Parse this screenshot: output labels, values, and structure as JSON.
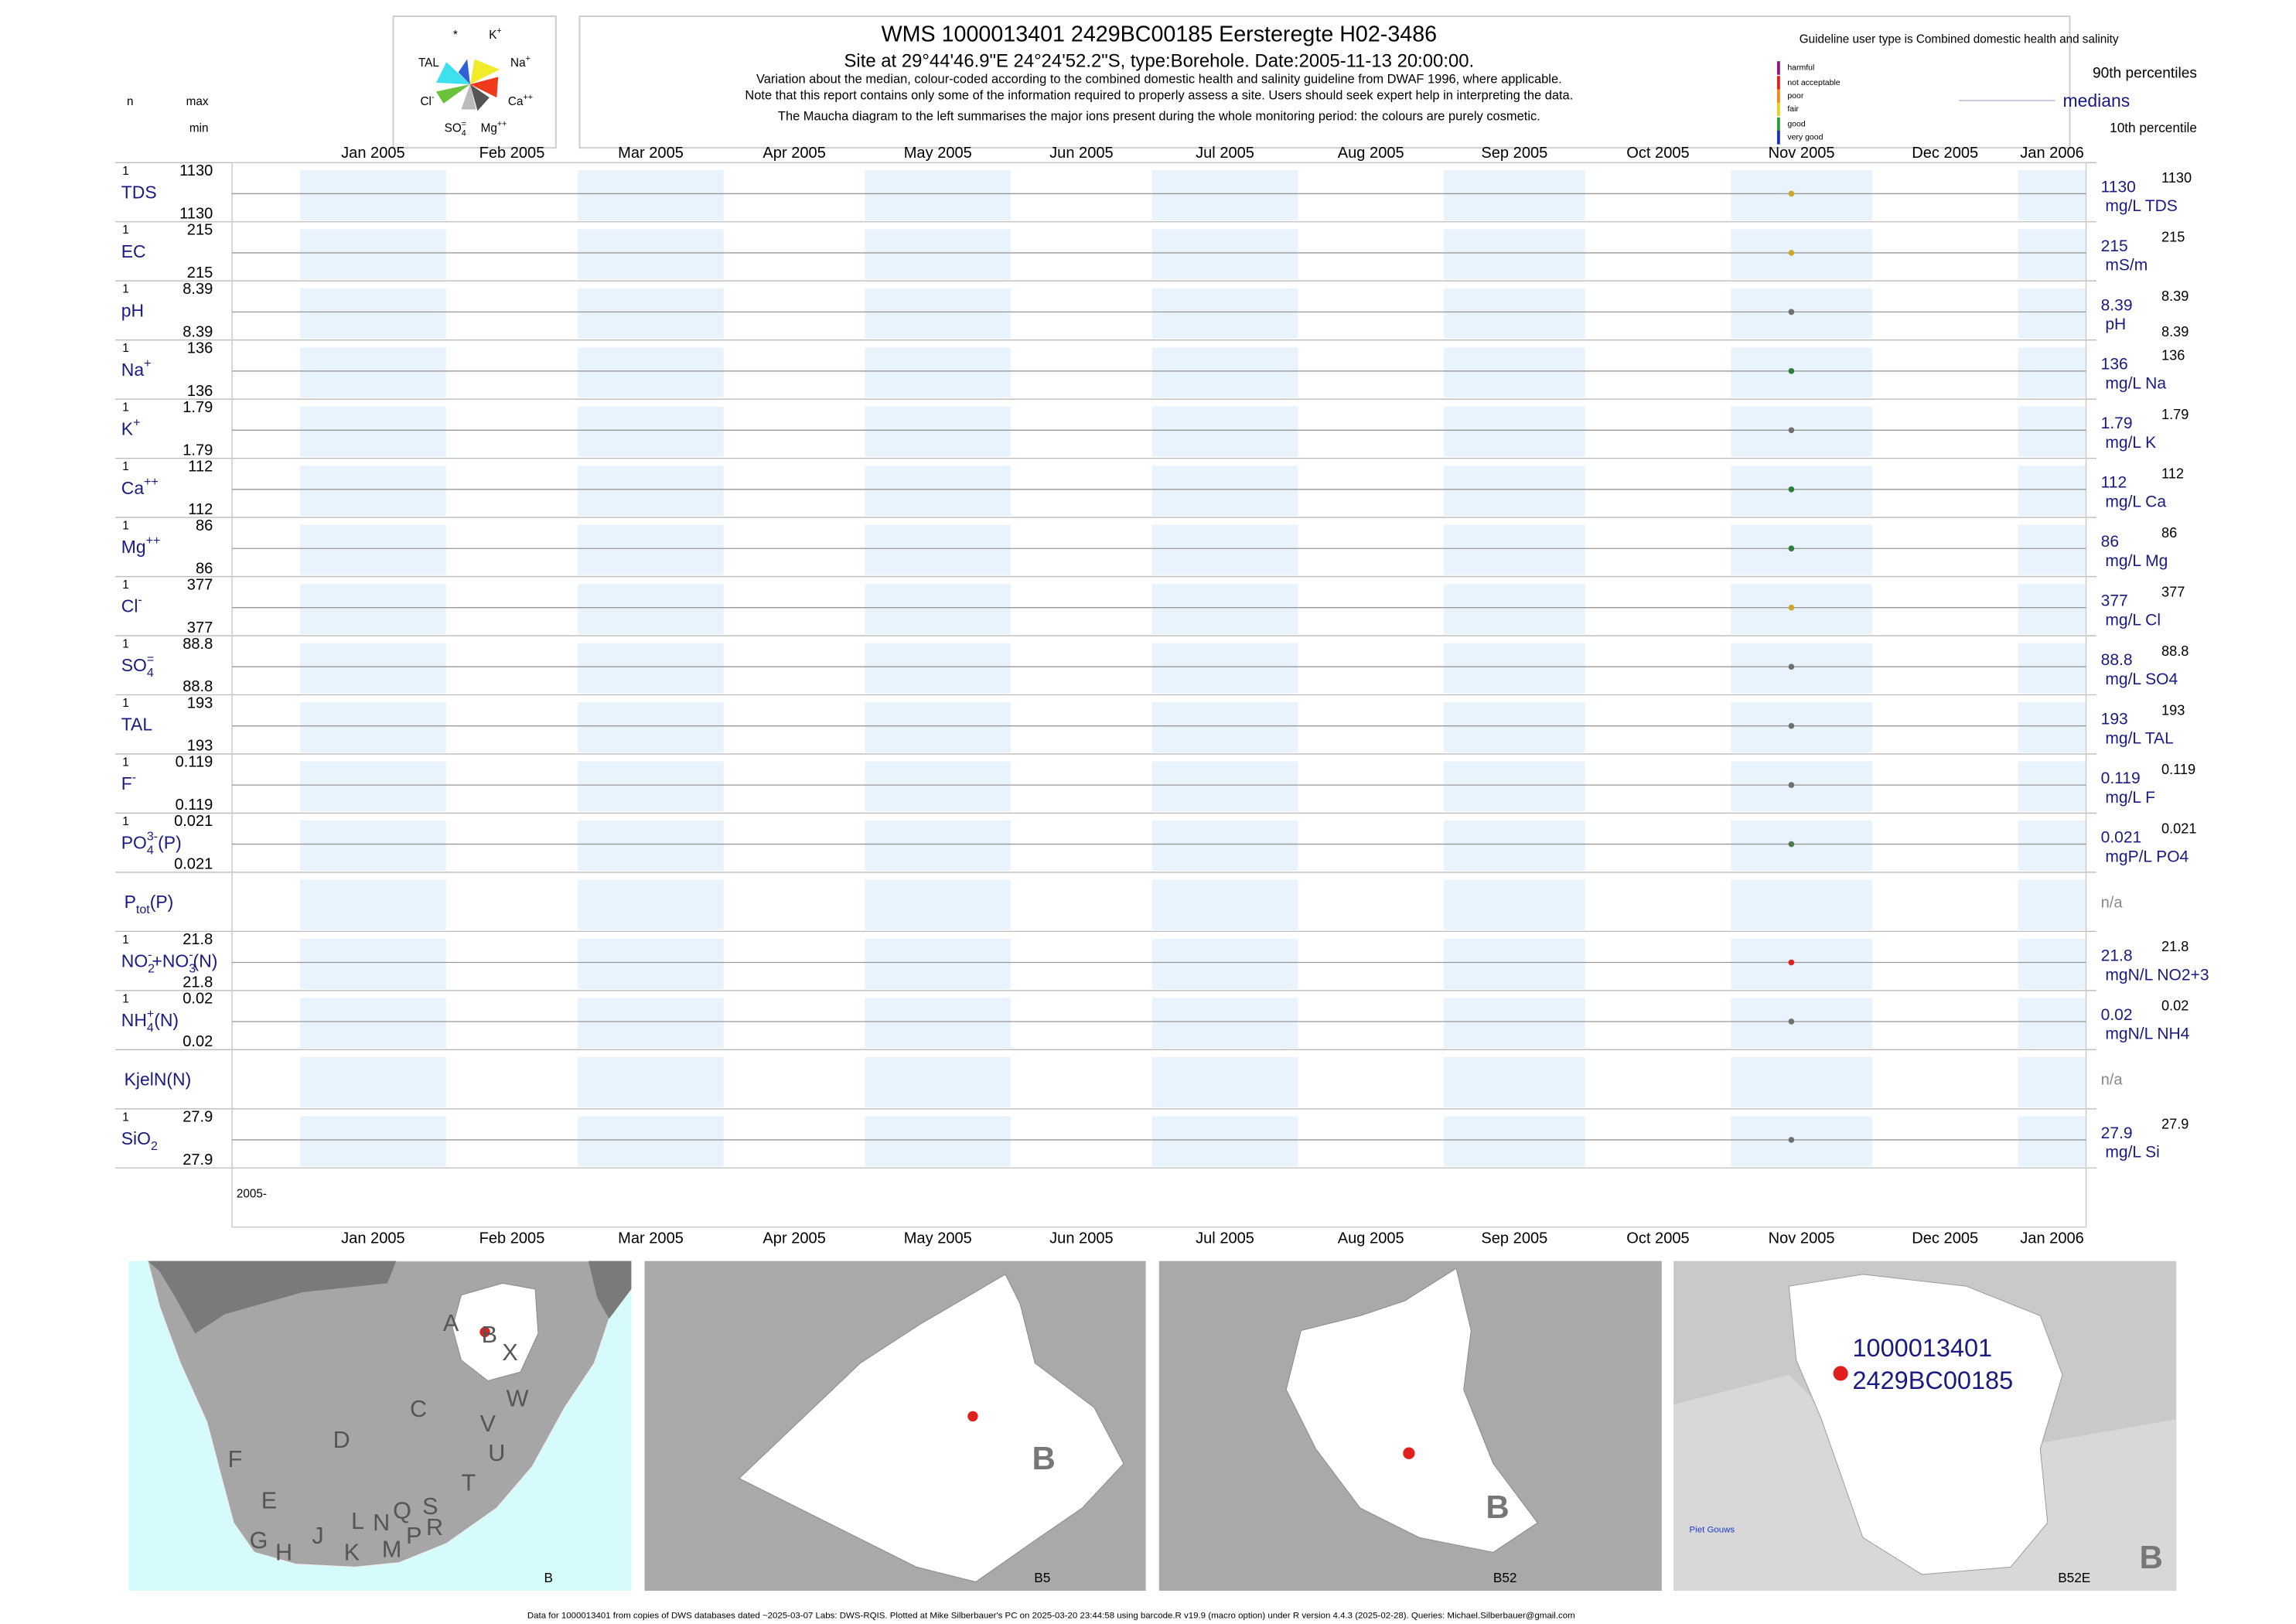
{
  "header": {
    "title": "WMS 1000013401 2429BC00185 Eersteregte H02-3486",
    "subtitle_prefix": "Site at 29°44'46.9\"E 24°24'52.2\"S, type:Borehole. Date:",
    "date": "2005-11-13 20:00:00",
    "subtitle_suffix": ".",
    "notes": [
      "Variation about the median,  colour-coded according to the combined domestic health and salinity guideline from DWAF 1996, where applicable.",
      "Note that this report contains only some of the information required to properly assess a site. Users should seek expert help in interpreting the data.",
      "The Maucha diagram to the left summarises the major ions present during the whole monitoring period: the colours are purely cosmetic."
    ]
  },
  "maucha": {
    "labels": [
      [
        {
          "text": "*"
        }
      ],
      [
        {
          "text": "K"
        },
        {
          "text": "+",
          "pos": "sup"
        }
      ],
      [
        {
          "text": "TAL"
        }
      ],
      [
        {
          "text": "Na"
        },
        {
          "text": "+",
          "pos": "sup"
        }
      ],
      [
        {
          "text": "Cl"
        },
        {
          "text": "-",
          "pos": "sup"
        }
      ],
      [
        {
          "text": "Ca"
        },
        {
          "text": "++",
          "pos": "sup"
        }
      ],
      [
        {
          "text": "SO"
        },
        {
          "text": "4",
          "pos": "sub"
        },
        {
          "text": "=",
          "pos": "sup"
        }
      ],
      [
        {
          "text": "Mg"
        },
        {
          "text": "++",
          "pos": "sup"
        }
      ]
    ]
  },
  "legend": {
    "guideline": "Guideline user type is Combined domestic health and salinity",
    "classes": [
      {
        "label": "harmful",
        "color": "#8b1a89"
      },
      {
        "label": "not acceptable",
        "color": "#e0201c"
      },
      {
        "label": "poor",
        "color": "#f08a1c"
      },
      {
        "label": "fair",
        "color": "#e6d21e"
      },
      {
        "label": "good",
        "color": "#2e9a3a"
      },
      {
        "label": "very good",
        "color": "#1c2fb8"
      }
    ],
    "p90": "90th percentiles",
    "median": "medians",
    "p10": "10th percentile"
  },
  "columns": {
    "n": "n",
    "max": "max",
    "min": "min"
  },
  "months": [
    "Jan 2005",
    "Feb 2005",
    "Mar 2005",
    "Apr 2005",
    "May 2005",
    "Jun 2005",
    "Jul 2005",
    "Aug 2005",
    "Sep 2005",
    "Oct 2005",
    "Nov 2005",
    "Dec 2005",
    "Jan 2006"
  ],
  "year_label": "2005-",
  "rows": [
    {
      "label": [
        {
          "text": "TDS"
        }
      ],
      "n": 1,
      "max": 1130,
      "min": 1130,
      "median": 1130,
      "unit": "mg/L TDS",
      "p90": 1130,
      "color": "#c9a82a"
    },
    {
      "label": [
        {
          "text": "EC"
        }
      ],
      "n": 1,
      "max": 215,
      "min": 215,
      "median": 215,
      "unit": "mS/m",
      "p90": 215,
      "color": "#c9a82a"
    },
    {
      "label": [
        {
          "text": "pH"
        }
      ],
      "n": 1,
      "max": 8.39,
      "min": 8.39,
      "median": 8.39,
      "unit": "pH",
      "p90": 8.39,
      "p10": 8.39,
      "color": "#707070"
    },
    {
      "label": [
        {
          "text": "Na"
        },
        {
          "text": "+",
          "pos": "sup"
        }
      ],
      "n": 1,
      "max": 136,
      "min": 136,
      "median": 136,
      "unit": "mg/L Na",
      "p90": 136,
      "color": "#2e7d3a"
    },
    {
      "label": [
        {
          "text": "K"
        },
        {
          "text": "+",
          "pos": "sup"
        }
      ],
      "n": 1,
      "max": 1.79,
      "min": 1.79,
      "median": 1.79,
      "unit": "mg/L K",
      "p90": 1.79,
      "color": "#707070"
    },
    {
      "label": [
        {
          "text": "Ca"
        },
        {
          "text": "++",
          "pos": "sup"
        }
      ],
      "n": 1,
      "max": 112,
      "min": 112,
      "median": 112,
      "unit": "mg/L Ca",
      "p90": 112,
      "color": "#2e7d3a"
    },
    {
      "label": [
        {
          "text": "Mg"
        },
        {
          "text": "++",
          "pos": "sup"
        }
      ],
      "n": 1,
      "max": 86,
      "min": 86,
      "median": 86,
      "unit": "mg/L Mg",
      "p90": 86,
      "color": "#2e7d3a"
    },
    {
      "label": [
        {
          "text": "Cl"
        },
        {
          "text": "-",
          "pos": "sup"
        }
      ],
      "n": 1,
      "max": 377,
      "min": 377,
      "median": 377,
      "unit": "mg/L Cl",
      "p90": 377,
      "color": "#c9a82a"
    },
    {
      "label": [
        {
          "text": "SO"
        },
        {
          "text": "4",
          "pos": "sub"
        },
        {
          "text": "=",
          "pos": "sup"
        }
      ],
      "n": 1,
      "max": 88.8,
      "min": 88.8,
      "median": 88.8,
      "unit": "mg/L SO4",
      "p90": 88.8,
      "color": "#707070"
    },
    {
      "label": [
        {
          "text": "TAL"
        }
      ],
      "n": 1,
      "max": 193,
      "min": 193,
      "median": 193,
      "unit": "mg/L TAL",
      "p90": 193,
      "color": "#707070"
    },
    {
      "label": [
        {
          "text": "F"
        },
        {
          "text": "-",
          "pos": "sup"
        }
      ],
      "n": 1,
      "max": 0.119,
      "min": 0.119,
      "median": 0.119,
      "unit": "mg/L F",
      "p90": 0.119,
      "color": "#707070"
    },
    {
      "label": [
        {
          "text": "PO"
        },
        {
          "text": "4",
          "pos": "sub"
        },
        {
          "text": "3-",
          "pos": "sup"
        },
        {
          "text": "(P)"
        }
      ],
      "n": 1,
      "max": 0.021,
      "min": 0.021,
      "median": 0.021,
      "unit": "mgP/L PO4",
      "p90": 0.021,
      "color": "#4f7a4f"
    },
    {
      "label": [
        {
          "text": "P"
        },
        {
          "text": "tot",
          "pos": "sub"
        },
        {
          "text": "(P)"
        }
      ],
      "status": "n/a"
    },
    {
      "label": [
        {
          "text": "NO"
        },
        {
          "text": "2",
          "pos": "sub"
        },
        {
          "text": "-",
          "pos": "sup"
        },
        {
          "text": "+NO"
        },
        {
          "text": "3",
          "pos": "sub"
        },
        {
          "text": "-",
          "pos": "sup"
        },
        {
          "text": "(N)"
        }
      ],
      "n": 1,
      "max": 21.8,
      "min": 21.8,
      "median": 21.8,
      "unit": "mgN/L NO2+3",
      "p90": 21.8,
      "color": "#e0201c"
    },
    {
      "label": [
        {
          "text": "NH"
        },
        {
          "text": "4",
          "pos": "sub"
        },
        {
          "text": "+",
          "pos": "sup"
        },
        {
          "text": "(N)"
        }
      ],
      "n": 1,
      "max": 0.02,
      "min": 0.02,
      "median": 0.02,
      "unit": "mgN/L NH4",
      "p90": 0.02,
      "color": "#707070"
    },
    {
      "label": [
        {
          "text": "KjelN(N)"
        }
      ],
      "status": "n/a"
    },
    {
      "label": [
        {
          "text": "SiO"
        },
        {
          "text": "2",
          "pos": "sub"
        }
      ],
      "n": 1,
      "max": 27.9,
      "min": 27.9,
      "median": 27.9,
      "unit": "mg/L Si",
      "p90": 27.9,
      "color": "#707070"
    }
  ],
  "maps": [
    {
      "caption": "B",
      "labels": [
        "A",
        "B",
        "X",
        "C",
        "W",
        "D",
        "V",
        "U",
        "F",
        "T",
        "E",
        "S",
        "R",
        "G",
        "H",
        "J",
        "K",
        "L",
        "N",
        "M",
        "Q",
        "P"
      ]
    },
    {
      "caption": "B5",
      "labels": [
        "B"
      ]
    },
    {
      "caption": "B52",
      "labels": [
        "B"
      ]
    },
    {
      "caption": "B52E",
      "labels": [
        "B",
        "1000013401",
        "2429BC00185",
        "Piet Gouws"
      ]
    }
  ],
  "footer": "Data for 1000013401 from copies of DWS databases dated ~2025-03-07 Labs: DWS-RQIS. Plotted at Mike Silberbauer's PC on 2025-03-20 23:44:58 using barcode.R v19.9 (macro option) under R version 4.4.3 (2025-02-28). Queries: Michael.Silberbauer@gmail.com"
}
